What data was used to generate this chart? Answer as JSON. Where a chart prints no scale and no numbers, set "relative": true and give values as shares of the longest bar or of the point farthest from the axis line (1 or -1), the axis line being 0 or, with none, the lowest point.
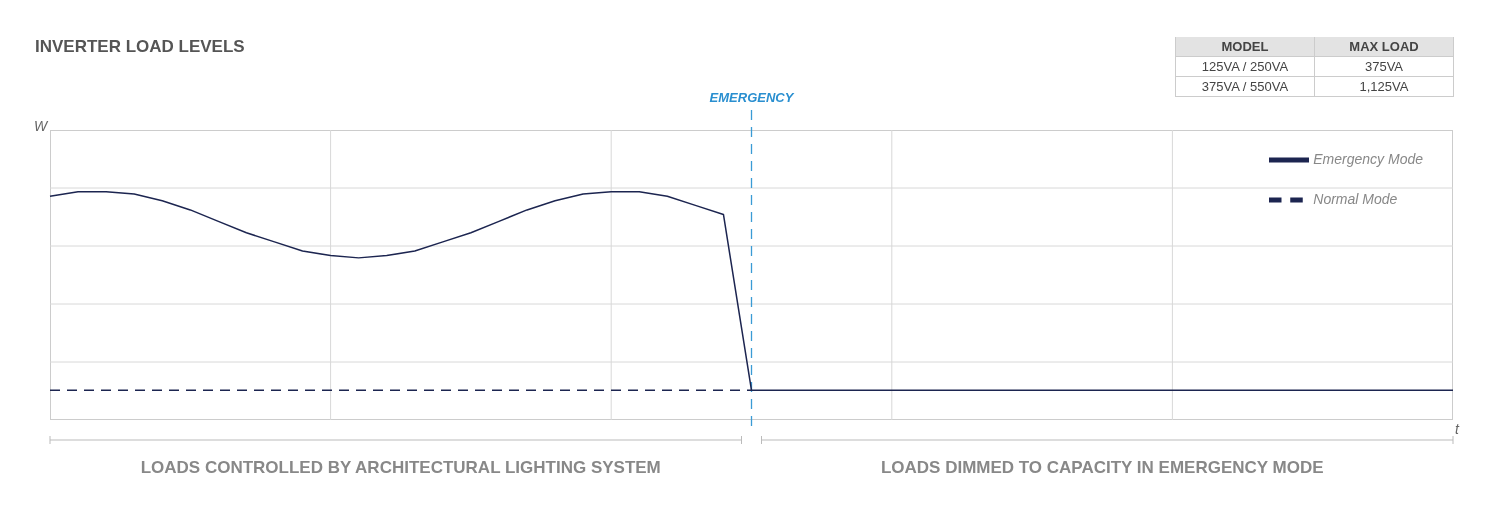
{
  "chart_data": {
    "type": "line",
    "title": "INVERTER LOAD LEVELS",
    "xlabel": "t",
    "ylabel": "W",
    "relative": true,
    "categories": [
      null,
      null,
      null,
      null,
      null,
      null,
      null,
      null,
      null,
      null,
      null,
      null,
      null,
      null,
      null,
      null,
      null,
      null,
      null,
      null,
      null,
      null,
      null,
      null,
      null,
      null,
      null,
      null,
      null,
      null,
      null,
      null,
      null,
      null,
      null,
      null,
      null,
      null,
      null,
      null,
      null,
      null,
      null,
      null,
      null,
      null,
      null,
      null,
      null,
      null,
      null
    ],
    "grid": true,
    "legend": "top right",
    "series": [
      {
        "name": "Emergency Mode",
        "color": "#1c2550",
        "line_style": "solid",
        "values": [
          0.98,
          1,
          1,
          0.99,
          0.96,
          0.92,
          0.87,
          0.82,
          0.78,
          0.74,
          0.72,
          0.71,
          0.72,
          0.74,
          0.78,
          0.82,
          0.87,
          0.92,
          0.96,
          0.99,
          1,
          1,
          0.98,
          0.94,
          0.9,
          0.13,
          0.13,
          0.13,
          0.13,
          0.13,
          0.13,
          0.13,
          0.13,
          0.13,
          0.13,
          0.13,
          0.13,
          0.13,
          0.13,
          0.13,
          0.13,
          0.13,
          0.13,
          0.13,
          0.13,
          0.13,
          0.13,
          0.13,
          0.13,
          0.13,
          0.13
        ]
      },
      {
        "name": "Normal Mode",
        "color": "#1c2550",
        "line_style": "dashed",
        "values": [
          0.13,
          0.13,
          0.13,
          0.13,
          0.13,
          0.13,
          0.13,
          0.13,
          0.13,
          0.13,
          0.13,
          0.13,
          0.13,
          0.13,
          0.13,
          0.13,
          0.13,
          0.13,
          0.13,
          0.13,
          0.13,
          0.13,
          0.13,
          0.13,
          0.13,
          0.13,
          null,
          null,
          null,
          null,
          null,
          null,
          null,
          null,
          null,
          null,
          null,
          null,
          null,
          null,
          null,
          null,
          null,
          null,
          null,
          null,
          null,
          null,
          null,
          null,
          null
        ]
      }
    ],
    "annotations": [
      "EMERGENCY",
      "LOADS CONTROLLED BY ARCHITECTURAL LIGHTING SYSTEM",
      "LOADS DIMMED TO CAPACITY IN EMERGENCY MODE",
      "MODEL",
      "MAX LOAD",
      "125VA / 250VA",
      "375VA",
      "375VA / 550VA",
      "1,125VA"
    ]
  }
}
